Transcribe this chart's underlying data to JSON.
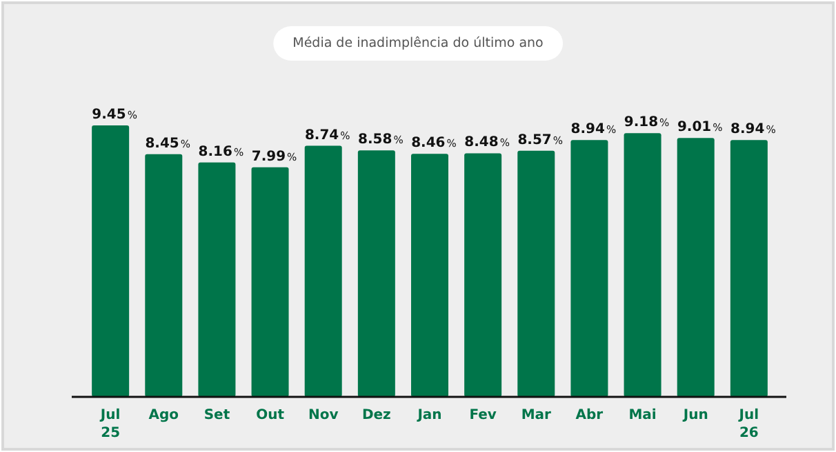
{
  "chart_data": {
    "type": "bar",
    "title": "Média de inadimplência do último ano",
    "categories": [
      "Jul 25",
      "Ago",
      "Set",
      "Out",
      "Nov",
      "Dez",
      "Jan",
      "Fev",
      "Mar",
      "Abr",
      "Mai",
      "Jun",
      "Jul 26"
    ],
    "values": [
      9.45,
      8.45,
      8.16,
      7.99,
      8.74,
      8.58,
      8.46,
      8.48,
      8.57,
      8.94,
      9.18,
      9.01,
      8.94
    ],
    "value_labels": [
      "9.45%",
      "8.45%",
      "8.16%",
      "7.99%",
      "8.74%",
      "8.58%",
      "8.46%",
      "8.48%",
      "8.57%",
      "8.94%",
      "9.18%",
      "9.01%",
      "8.94%"
    ],
    "color": "#00754a",
    "tick_labels": "x"
  }
}
